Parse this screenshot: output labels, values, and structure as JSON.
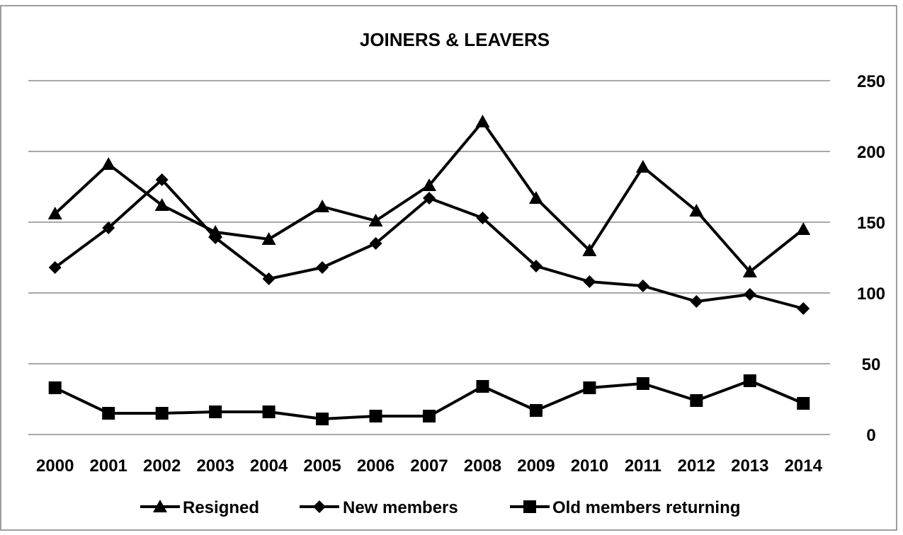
{
  "chart_data": {
    "type": "line",
    "title": "JOINERS & LEAVERS",
    "categories": [
      "2000",
      "2001",
      "2002",
      "2003",
      "2004",
      "2005",
      "2006",
      "2007",
      "2008",
      "2009",
      "2010",
      "2011",
      "2012",
      "2013",
      "2014"
    ],
    "series": [
      {
        "name": "Resigned",
        "marker": "triangle",
        "values": [
          156,
          191,
          162,
          143,
          138,
          161,
          151,
          176,
          221,
          167,
          130,
          189,
          158,
          115,
          145
        ]
      },
      {
        "name": "New members",
        "marker": "diamond",
        "values": [
          118,
          146,
          180,
          139,
          110,
          118,
          135,
          167,
          153,
          119,
          108,
          105,
          94,
          99,
          89
        ]
      },
      {
        "name": "Old members returning",
        "marker": "square",
        "values": [
          33,
          15,
          15,
          16,
          16,
          11,
          13,
          13,
          34,
          17,
          33,
          36,
          24,
          38,
          22
        ]
      }
    ],
    "y_ticks": [
      0,
      50,
      100,
      150,
      200,
      250
    ],
    "ylim": [
      0,
      250
    ],
    "y_axis_side": "right",
    "grid": true,
    "legend_position": "bottom",
    "colors": {
      "line": "#000000",
      "grid": "#8c8c8c",
      "frame": "#7f7f7f"
    }
  }
}
